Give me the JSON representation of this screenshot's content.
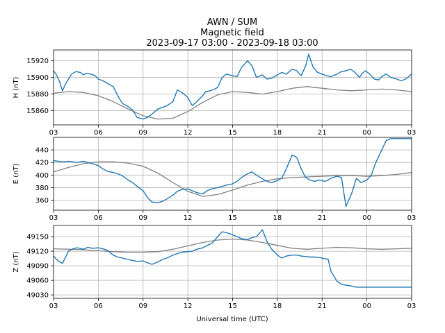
{
  "chart_data": {
    "type": "line",
    "title": [
      "AWN / SUM",
      "Magnetic field",
      "2023-09-17 03:00 - 2023-09-18 03:00"
    ],
    "xlabel": "Universal time (UTC)",
    "x_ticks": [
      "03",
      "06",
      "09",
      "12",
      "15",
      "18",
      "21",
      "00",
      "03"
    ],
    "x_range_hours": [
      0,
      24
    ],
    "grid": true,
    "colors": {
      "measured": "#1f77b4",
      "baseline": "#808080"
    },
    "panels": [
      {
        "ylabel": "H (nT)",
        "ylim": [
          15843,
          15933
        ],
        "yticks": [
          15860,
          15880,
          15900,
          15920
        ],
        "series": [
          {
            "x": [
              0,
              0.2,
              0.4,
              0.6,
              0.8,
              1,
              1.2,
              1.5,
              1.8,
              2,
              2.2,
              2.5,
              2.8,
              3,
              3.3,
              3.6,
              4,
              4.3,
              4.6,
              5,
              5.3,
              5.6,
              6,
              6.3,
              6.6,
              7,
              7.3,
              7.6,
              8,
              8.3,
              8.6,
              9,
              9.3,
              9.6,
              10,
              10.2,
              10.5,
              10.8,
              11,
              11.3,
              11.6,
              12,
              12.3,
              12.6,
              13,
              13.3,
              13.6,
              14,
              14.3,
              14.6,
              15,
              15.3,
              15.6,
              16,
              16.3,
              16.6,
              16.9,
              17.1,
              17.4,
              17.7,
              18,
              18.3,
              18.6,
              19,
              19.3,
              19.6,
              19.9,
              20.2,
              20.5,
              20.7,
              20.9,
              21.2,
              21.5,
              21.8,
              22,
              22.3,
              22.6,
              23,
              23.3,
              23.6,
              24
            ],
            "y": [
              15908,
              15903,
              15895,
              15884,
              15892,
              15898,
              15904,
              15907,
              15906,
              15903,
              15905,
              15904,
              15902,
              15898,
              15896,
              15893,
              15889,
              15878,
              15869,
              15865,
              15861,
              15852,
              15850,
              15852,
              15856,
              15862,
              15864,
              15866,
              15871,
              15885,
              15882,
              15876,
              15866,
              15871,
              15878,
              15883,
              15884,
              15886,
              15888,
              15900,
              15904,
              15902,
              15901,
              15912,
              15920,
              15914,
              15900,
              15903,
              15898,
              15899,
              15903,
              15906,
              15904,
              15910,
              15908,
              15902,
              15914,
              15928,
              15912,
              15906,
              15904,
              15902,
              15901,
              15904,
              15907,
              15908,
              15910,
              15906,
              15900,
              15905,
              15908,
              15904,
              15898,
              15897,
              15901,
              15904,
              15900,
              15898,
              15896,
              15898,
              15904
            ]
          },
          {
            "x": [
              0,
              1,
              2,
              3,
              4,
              5,
              6,
              7,
              8,
              9,
              10,
              11,
              12,
              13,
              14,
              15,
              16,
              17,
              18,
              19,
              20,
              21,
              22,
              23,
              24
            ],
            "y": [
              15881,
              15883,
              15882,
              15878,
              15871,
              15862,
              15854,
              15850,
              15851,
              15859,
              15870,
              15879,
              15883,
              15882,
              15880,
              15883,
              15887,
              15889,
              15887,
              15885,
              15884,
              15885,
              15886,
              15885,
              15883
            ]
          }
        ]
      },
      {
        "ylabel": "E (nT)",
        "ylim": [
          344,
          460
        ],
        "yticks": [
          360,
          380,
          400,
          420,
          440
        ],
        "series": [
          {
            "x": [
              0,
              0.3,
              0.6,
              1,
              1.3,
              1.6,
              2,
              2.3,
              2.6,
              3,
              3.3,
              3.6,
              4,
              4.3,
              4.6,
              5,
              5.3,
              5.6,
              6,
              6.3,
              6.6,
              7,
              7.3,
              7.6,
              8,
              8.3,
              8.6,
              9,
              9.3,
              9.6,
              10,
              10.3,
              10.6,
              11,
              11.3,
              11.6,
              12,
              12.3,
              12.6,
              13,
              13.3,
              13.6,
              14,
              14.3,
              14.6,
              15,
              15.3,
              15.6,
              16,
              16.3,
              16.6,
              16.9,
              17.2,
              17.5,
              17.8,
              18,
              18.2,
              18.4,
              18.6,
              19,
              19.3,
              19.6,
              20,
              20.3,
              20.6,
              21,
              21.3,
              21.6,
              22,
              22.3,
              22.6,
              23,
              23.2,
              23.4,
              23.6,
              23.8,
              24
            ],
            "y": [
              423,
              422,
              421,
              422,
              421,
              420,
              422,
              420,
              418,
              415,
              410,
              406,
              404,
              402,
              399,
              392,
              388,
              382,
              375,
              364,
              357,
              356,
              358,
              362,
              368,
              374,
              377,
              378,
              375,
              372,
              370,
              375,
              378,
              380,
              382,
              384,
              386,
              390,
              396,
              402,
              405,
              400,
              394,
              390,
              388,
              391,
              395,
              410,
              432,
              428,
              410,
              396,
              392,
              390,
              392,
              391,
              390,
              392,
              395,
              398,
              396,
              350,
              372,
              395,
              388,
              392,
              400,
              420,
              440,
              455,
              458,
              458,
              458,
              458,
              458,
              458,
              458
            ]
          },
          {
            "x": [
              0,
              1,
              2,
              3,
              4,
              5,
              6,
              7,
              8,
              9,
              10,
              11,
              12,
              13,
              14,
              15,
              16,
              17,
              18,
              19,
              20,
              21,
              22,
              23,
              24
            ],
            "y": [
              405,
              412,
              418,
              421,
              421,
              419,
              414,
              403,
              388,
              374,
              366,
              369,
              376,
              384,
              390,
              394,
              396,
              397,
              398,
              399,
              399,
              398,
              399,
              401,
              404
            ]
          }
        ]
      },
      {
        "ylabel": "Z (nT)",
        "ylim": [
          49023,
          49173
        ],
        "yticks": [
          49030,
          49060,
          49090,
          49120,
          49150
        ],
        "series": [
          {
            "x": [
              0,
              0.3,
              0.6,
              1,
              1.3,
              1.6,
              2,
              2.3,
              2.6,
              3,
              3.3,
              3.6,
              4,
              4.3,
              4.6,
              5,
              5.3,
              5.6,
              6,
              6.3,
              6.6,
              7,
              7.3,
              7.6,
              8,
              8.3,
              8.6,
              9,
              9.3,
              9.6,
              10,
              10.3,
              10.6,
              11,
              11.3,
              11.6,
              12,
              12.3,
              12.6,
              13,
              13.3,
              13.6,
              14,
              14.3,
              14.6,
              15,
              15.3,
              15.6,
              16,
              16.3,
              16.6,
              16.9,
              17.2,
              17.5,
              17.8,
              18,
              18.2,
              18.4,
              18.6,
              19,
              19.3,
              19.6,
              20,
              20.3,
              20.6,
              21,
              21.3,
              21.6,
              22,
              22.3,
              22.6,
              23,
              23.2,
              23.4,
              23.6,
              23.8,
              24
            ],
            "y": [
              49110,
              49100,
              49095,
              49120,
              49125,
              49127,
              49124,
              49128,
              49126,
              49127,
              49125,
              49122,
              49112,
              49108,
              49106,
              49103,
              49101,
              49099,
              49100,
              49096,
              49093,
              49098,
              49103,
              49106,
              49112,
              49115,
              49118,
              49119,
              49120,
              49124,
              49127,
              49132,
              49136,
              49150,
              49160,
              49158,
              49154,
              49150,
              49146,
              49144,
              49148,
              49150,
              49164,
              49140,
              49125,
              49112,
              49106,
              49110,
              49112,
              49112,
              49110,
              49109,
              49108,
              49108,
              49107,
              49106,
              49104,
              49104,
              49078,
              49058,
              49052,
              49050,
              49048,
              49046,
              49046,
              49046,
              49046,
              49046,
              49046,
              49046,
              49046,
              49046,
              49046,
              49046,
              49046,
              49046,
              49046
            ]
          },
          {
            "x": [
              0,
              1,
              2,
              3,
              4,
              5,
              6,
              7,
              8,
              9,
              10,
              11,
              12,
              13,
              14,
              15,
              16,
              17,
              18,
              19,
              20,
              21,
              22,
              23,
              24
            ],
            "y": [
              49125,
              49124,
              49123,
              49121,
              49119,
              49118,
              49118,
              49119,
              49124,
              49131,
              49138,
              49143,
              49145,
              49143,
              49138,
              49132,
              49126,
              49124,
              49126,
              49128,
              49127,
              49125,
              49124,
              49125,
              49126
            ]
          }
        ]
      }
    ]
  }
}
